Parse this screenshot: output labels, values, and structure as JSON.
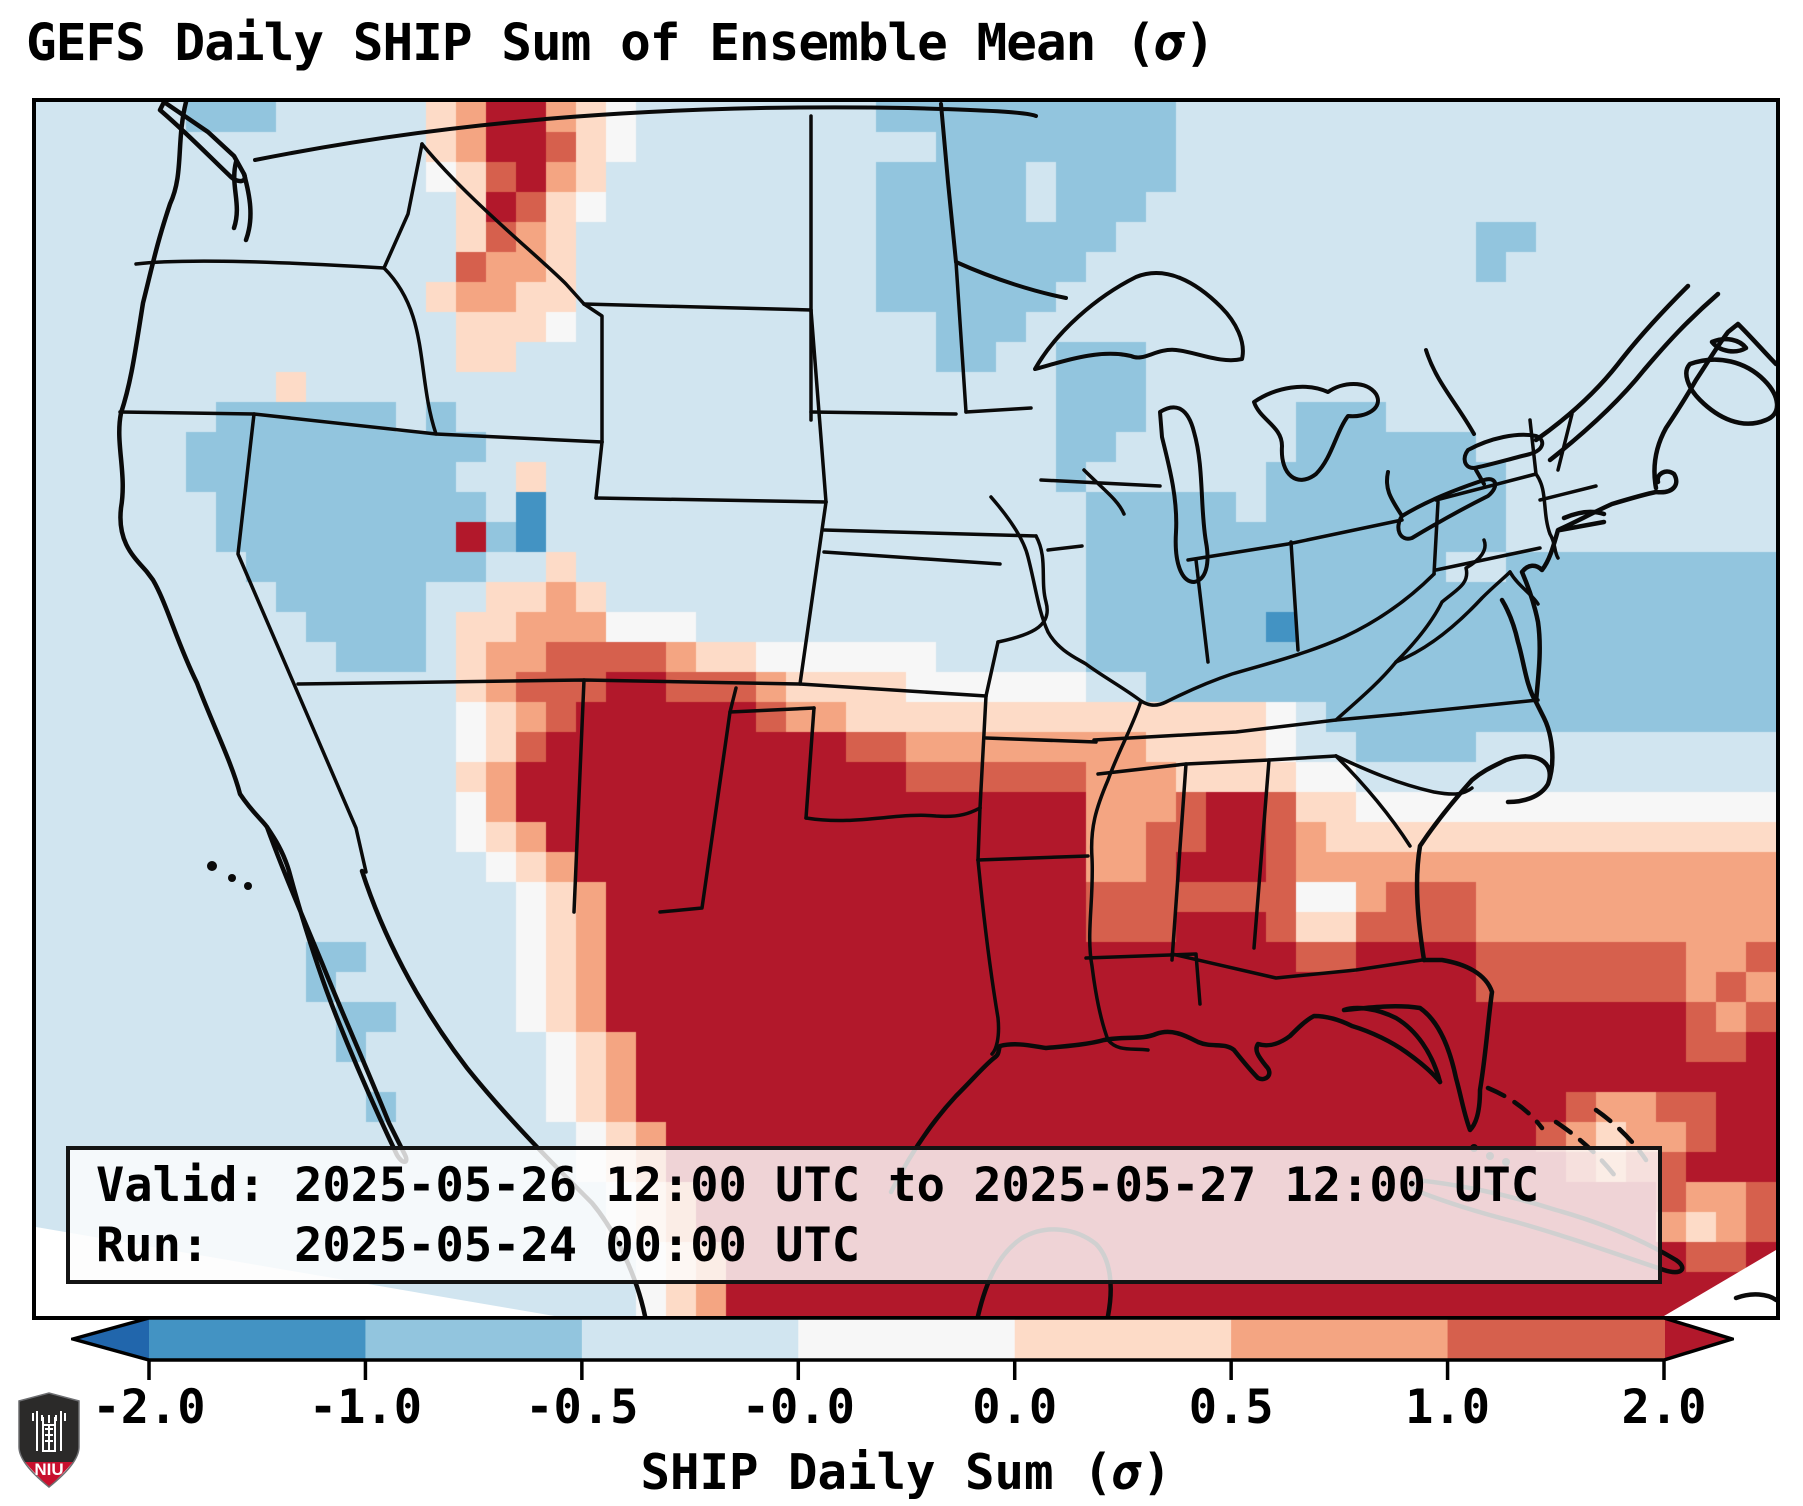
{
  "title": {
    "prefix": "GEFS Daily SHIP Sum of Ensemble Mean (",
    "sigma": "σ",
    "suffix": ")"
  },
  "info_box": {
    "valid_line": "Valid: 2025-05-26 12:00 UTC to 2025-05-27 12:00 UTC",
    "run_line": "Run:   2025-05-24 00:00 UTC"
  },
  "colorbar": {
    "label_prefix": "SHIP Daily Sum (",
    "label_sigma": "σ",
    "label_suffix": ")",
    "tick_labels": [
      "-2.0",
      "-1.0",
      "-0.5",
      "-0.0",
      "0.0",
      "0.5",
      "1.0",
      "2.0"
    ],
    "boundaries": [
      -2.0,
      -1.0,
      -0.5,
      -0.0,
      0.0,
      0.5,
      1.0,
      2.0
    ],
    "segment_colors": [
      "#4393c3",
      "#92c5de",
      "#d1e5f0",
      "#f7f7f7",
      "#fddbc7",
      "#f4a582",
      "#d6604d"
    ],
    "under_color": "#2166ac",
    "over_color": "#b2182b",
    "outline_color": "#000000"
  },
  "logo": {
    "org": "NIU",
    "shield_dark": "#2b2a29",
    "shield_red": "#c8102e"
  },
  "chart_data": {
    "type": "heatmap",
    "title": "GEFS Daily SHIP Sum of Ensemble Mean (σ)",
    "xlabel": "SHIP Daily Sum (σ)",
    "legend_position": "bottom",
    "value_boundaries": [
      -2.0,
      -1.0,
      -0.5,
      -0.0,
      0.0,
      0.5,
      1.0,
      2.0
    ],
    "class_values": {
      "0": "<-2",
      "1": "-2 to -1",
      "2": "-1 to -0.5",
      "3": "-0.5 to -0",
      "4": "-0 to 0",
      "5": "0 to 0.5",
      "6": "0.5 to 1",
      "7": "1 to 2",
      "8": ">2"
    },
    "region": "CONUS and adjacent Canada/Mexico/Gulf/Atlantic",
    "valid": "2025-05-26 12:00 UTC to 2025-05-27 12:00 UTC",
    "run": "2025-05-24 00:00 UTC"
  },
  "map": {
    "cell_size": 30,
    "palette": {
      "0": "#2166ac",
      "1": "#4393c3",
      "2": "#92c5de",
      "3": "#d1e5f0",
      "4": "#f7f7f7",
      "5": "#fddbc7",
      "6": "#f4a582",
      "7": "#d6604d",
      "8": "#b2182b"
    },
    "rows": [
      "3333322233333568865433333333222222222233333333333333333333",
      "3333333333333568875433333333332222222233333333333333333333",
      "3333333333333457865333333333222223222233333333333333333333",
      "3333333333333358754333333333222223222333333333333333333333",
      "3333333333333357653333333333222222223333333333332233333333",
      "3333333333333376653333333333222222233333333333332333333333",
      "3333333333333566553333333333222222333333333333333333333333",
      "3333333333333355543333333333332223333333333333333333333333",
      "3333333333333355333333333333332233222333333333333333333333",
      "3333333353333333333333333333333333222333333333333333333333",
      "3333332222223233333333333333333333222333332223333333333333",
      "3333322222222223333333333333333333223333332222223333333333",
      "3333322222222233533333333333333333233333322222222333333333",
      "3333332222222223133333333333333333322222322222222333333333",
      "3333332222222282133333333333333333322222222222222333333333",
      "3333333222222223353333333333333333322222222222233222222222",
      "3333333322222335565333333333333333322222222222222222222222",
      "3333333332222355666444333333333333322222212222222222222222",
      "3333333333222356677776554444443333322222222222222222222222",
      "3333333333333356777887776555544444433222222222222222222222",
      "3333333333333345678888887665555555555555543222222222222222",
      "3333333333333345788888888887766666666555543322223333333333",
      "3333333333333356888888888888877777766655554433333333333333",
      "3333333333333346888888888888888888866678875544444444444444",
      "3333333333333345688888888888888888866778876555555555555555",
      "3333333333333334568888888888888888866788876666666666666666",
      "3333333333333333456888888888888888877777774467776666666666",
      "3333333333333333456888888888888888877788875577776666666666",
      "3333333332233333456888888888888888888888887788887777777667",
      "3333333332333333456888888888888888888888888888887777777676",
      "3333333333223333456888888888888888888888888888888888888767",
      "3333333333233333345688888888888888888888888888888888888778",
      "3333333333333333345688888888888888888888888888888888888888",
      "3333333333323333345688888888888888888888888888888887667788",
      "3333333333333333334568888888888888888888888888888876566788",
      "3333333333333333334568888888888888888888888888888887677888",
      "3333333333333333333456888888888888888888888888888888887667",
      "3333333333333333333456888888888888888888888888888888886567",
      "3333333333333333333345688888888888888888888888888888888778",
      "3333333333333333333345688888888888888888888888888888888888",
      "3333333333333333333345688888888888888888888888888888888888"
    ]
  }
}
